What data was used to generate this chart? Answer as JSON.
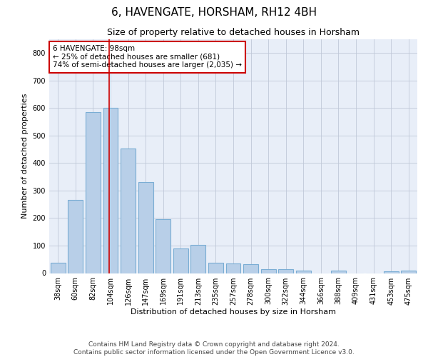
{
  "title": "6, HAVENGATE, HORSHAM, RH12 4BH",
  "subtitle": "Size of property relative to detached houses in Horsham",
  "xlabel": "Distribution of detached houses by size in Horsham",
  "ylabel": "Number of detached properties",
  "categories": [
    "38sqm",
    "60sqm",
    "82sqm",
    "104sqm",
    "126sqm",
    "147sqm",
    "169sqm",
    "191sqm",
    "213sqm",
    "235sqm",
    "257sqm",
    "278sqm",
    "300sqm",
    "322sqm",
    "344sqm",
    "366sqm",
    "388sqm",
    "409sqm",
    "431sqm",
    "453sqm",
    "475sqm"
  ],
  "values": [
    38,
    265,
    585,
    600,
    453,
    330,
    197,
    90,
    103,
    38,
    36,
    32,
    14,
    15,
    10,
    0,
    8,
    0,
    0,
    7,
    8
  ],
  "bar_color": "#b8cfe8",
  "bar_edge_color": "#7aadd4",
  "annotation_text": "6 HAVENGATE: 98sqm\n← 25% of detached houses are smaller (681)\n74% of semi-detached houses are larger (2,035) →",
  "annotation_box_color": "#ffffff",
  "annotation_box_edge_color": "#cc0000",
  "redline_x": 2.93,
  "ylim": [
    0,
    850
  ],
  "yticks": [
    0,
    100,
    200,
    300,
    400,
    500,
    600,
    700,
    800
  ],
  "footer_line1": "Contains HM Land Registry data © Crown copyright and database right 2024.",
  "footer_line2": "Contains public sector information licensed under the Open Government Licence v3.0.",
  "background_color": "#ffffff",
  "plot_bg_color": "#e8eef8",
  "grid_color": "#c0c8d8",
  "title_fontsize": 11,
  "subtitle_fontsize": 9,
  "axis_label_fontsize": 8,
  "tick_fontsize": 7,
  "annotation_fontsize": 7.5,
  "footer_fontsize": 6.5
}
